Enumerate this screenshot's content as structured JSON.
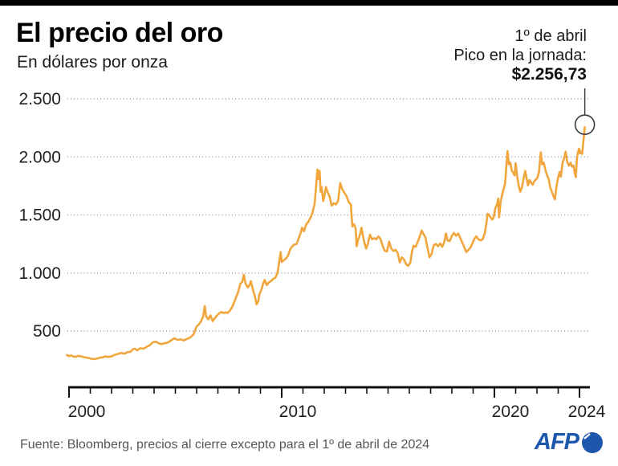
{
  "header": {
    "title": "El precio del oro",
    "subtitle": "En dólares por onza",
    "annotation": {
      "line1": "1º de abril",
      "line2": "Pico en la jornada:",
      "value": "$2.256,73"
    }
  },
  "footer": {
    "source": "Fuente: Bloomberg, precios al cierre excepto para el 1º de abril de 2024",
    "logo_text": "AFP"
  },
  "colors": {
    "line": "#F0A63C",
    "axis": "#111111",
    "grid": "#A6A6A6",
    "tick_label": "#1f1f1f",
    "marker": "#3a3a3a",
    "afp_blue": "#1c57ab",
    "topbar": "#000000"
  },
  "chart_data": {
    "type": "line",
    "title": "El precio del oro",
    "ylabel": "Dólares por onza",
    "xlim": [
      1999.9,
      2024.55
    ],
    "ylim": [
      0,
      2500
    ],
    "grid": "dotted-horizontal",
    "y_ticks": [
      {
        "value": 500,
        "label": "500"
      },
      {
        "value": 1000,
        "label": "1.000"
      },
      {
        "value": 1500,
        "label": "1.500"
      },
      {
        "value": 2000,
        "label": "2.000"
      },
      {
        "value": 2500,
        "label": "2.500"
      }
    ],
    "x_major_ticks": [
      {
        "year": 2000,
        "label": "2000"
      },
      {
        "year": 2010,
        "label": "2010"
      },
      {
        "year": 2020,
        "label": "2020"
      },
      {
        "year": 2024,
        "label": "2024"
      }
    ],
    "x_minor_ticks_every_year": true,
    "peak": {
      "x": 2024.25,
      "value": 2256.73,
      "label": "$2.256,73"
    },
    "series": [
      {
        "name": "Precio del oro",
        "points": [
          [
            1999.9,
            293
          ],
          [
            2000.0,
            283
          ],
          [
            2000.1,
            290
          ],
          [
            2000.2,
            280
          ],
          [
            2000.3,
            278
          ],
          [
            2000.45,
            286
          ],
          [
            2000.6,
            280
          ],
          [
            2000.75,
            273
          ],
          [
            2000.9,
            268
          ],
          [
            2001.0,
            264
          ],
          [
            2001.15,
            258
          ],
          [
            2001.3,
            262
          ],
          [
            2001.45,
            270
          ],
          [
            2001.6,
            274
          ],
          [
            2001.7,
            281
          ],
          [
            2001.85,
            277
          ],
          [
            2002.0,
            281
          ],
          [
            2002.15,
            295
          ],
          [
            2002.3,
            302
          ],
          [
            2002.45,
            312
          ],
          [
            2002.6,
            305
          ],
          [
            2002.75,
            318
          ],
          [
            2002.9,
            322
          ],
          [
            2003.0,
            342
          ],
          [
            2003.1,
            348
          ],
          [
            2003.2,
            334
          ],
          [
            2003.35,
            352
          ],
          [
            2003.5,
            348
          ],
          [
            2003.65,
            363
          ],
          [
            2003.8,
            378
          ],
          [
            2003.95,
            404
          ],
          [
            2004.1,
            408
          ],
          [
            2004.2,
            395
          ],
          [
            2004.35,
            388
          ],
          [
            2004.5,
            395
          ],
          [
            2004.65,
            402
          ],
          [
            2004.8,
            420
          ],
          [
            2004.95,
            438
          ],
          [
            2005.1,
            424
          ],
          [
            2005.25,
            428
          ],
          [
            2005.4,
            420
          ],
          [
            2005.55,
            432
          ],
          [
            2005.7,
            445
          ],
          [
            2005.85,
            470
          ],
          [
            2006.0,
            540
          ],
          [
            2006.1,
            555
          ],
          [
            2006.2,
            582
          ],
          [
            2006.3,
            620
          ],
          [
            2006.38,
            715
          ],
          [
            2006.45,
            625
          ],
          [
            2006.55,
            600
          ],
          [
            2006.65,
            635
          ],
          [
            2006.75,
            585
          ],
          [
            2006.85,
            610
          ],
          [
            2006.95,
            632
          ],
          [
            2007.05,
            650
          ],
          [
            2007.15,
            663
          ],
          [
            2007.25,
            655
          ],
          [
            2007.35,
            662
          ],
          [
            2007.45,
            655
          ],
          [
            2007.55,
            672
          ],
          [
            2007.65,
            700
          ],
          [
            2007.75,
            740
          ],
          [
            2007.85,
            790
          ],
          [
            2007.95,
            835
          ],
          [
            2008.05,
            905
          ],
          [
            2008.15,
            925
          ],
          [
            2008.22,
            985
          ],
          [
            2008.3,
            910
          ],
          [
            2008.4,
            875
          ],
          [
            2008.5,
            900
          ],
          [
            2008.55,
            930
          ],
          [
            2008.65,
            855
          ],
          [
            2008.75,
            790
          ],
          [
            2008.82,
            730
          ],
          [
            2008.9,
            760
          ],
          [
            2008.95,
            815
          ],
          [
            2009.05,
            858
          ],
          [
            2009.12,
            905
          ],
          [
            2009.2,
            940
          ],
          [
            2009.3,
            895
          ],
          [
            2009.4,
            920
          ],
          [
            2009.5,
            930
          ],
          [
            2009.6,
            950
          ],
          [
            2009.7,
            960
          ],
          [
            2009.8,
            1000
          ],
          [
            2009.9,
            1120
          ],
          [
            2009.95,
            1180
          ],
          [
            2010.0,
            1095
          ],
          [
            2010.1,
            1110
          ],
          [
            2010.2,
            1125
          ],
          [
            2010.3,
            1150
          ],
          [
            2010.4,
            1205
          ],
          [
            2010.5,
            1230
          ],
          [
            2010.6,
            1245
          ],
          [
            2010.7,
            1250
          ],
          [
            2010.8,
            1300
          ],
          [
            2010.9,
            1350
          ],
          [
            2010.95,
            1390
          ],
          [
            2011.05,
            1360
          ],
          [
            2011.15,
            1420
          ],
          [
            2011.25,
            1440
          ],
          [
            2011.35,
            1475
          ],
          [
            2011.45,
            1520
          ],
          [
            2011.55,
            1600
          ],
          [
            2011.62,
            1750
          ],
          [
            2011.68,
            1890
          ],
          [
            2011.72,
            1810
          ],
          [
            2011.78,
            1880
          ],
          [
            2011.83,
            1700
          ],
          [
            2011.88,
            1740
          ],
          [
            2011.95,
            1620
          ],
          [
            2012.0,
            1655
          ],
          [
            2012.08,
            1740
          ],
          [
            2012.15,
            1700
          ],
          [
            2012.25,
            1660
          ],
          [
            2012.35,
            1580
          ],
          [
            2012.45,
            1600
          ],
          [
            2012.55,
            1590
          ],
          [
            2012.65,
            1620
          ],
          [
            2012.75,
            1775
          ],
          [
            2012.85,
            1720
          ],
          [
            2012.95,
            1690
          ],
          [
            2013.05,
            1660
          ],
          [
            2013.15,
            1610
          ],
          [
            2013.25,
            1590
          ],
          [
            2013.32,
            1400
          ],
          [
            2013.4,
            1420
          ],
          [
            2013.48,
            1380
          ],
          [
            2013.52,
            1230
          ],
          [
            2013.6,
            1290
          ],
          [
            2013.68,
            1330
          ],
          [
            2013.75,
            1390
          ],
          [
            2013.82,
            1320
          ],
          [
            2013.9,
            1250
          ],
          [
            2013.97,
            1210
          ],
          [
            2014.05,
            1250
          ],
          [
            2014.15,
            1330
          ],
          [
            2014.25,
            1290
          ],
          [
            2014.35,
            1300
          ],
          [
            2014.45,
            1290
          ],
          [
            2014.55,
            1315
          ],
          [
            2014.65,
            1290
          ],
          [
            2014.75,
            1230
          ],
          [
            2014.85,
            1190
          ],
          [
            2014.95,
            1185
          ],
          [
            2015.05,
            1270
          ],
          [
            2015.15,
            1210
          ],
          [
            2015.25,
            1190
          ],
          [
            2015.35,
            1200
          ],
          [
            2015.45,
            1175
          ],
          [
            2015.55,
            1090
          ],
          [
            2015.65,
            1135
          ],
          [
            2015.75,
            1115
          ],
          [
            2015.85,
            1075
          ],
          [
            2015.95,
            1062
          ],
          [
            2016.05,
            1090
          ],
          [
            2016.12,
            1180
          ],
          [
            2016.2,
            1235
          ],
          [
            2016.3,
            1225
          ],
          [
            2016.4,
            1270
          ],
          [
            2016.5,
            1320
          ],
          [
            2016.58,
            1365
          ],
          [
            2016.65,
            1340
          ],
          [
            2016.75,
            1310
          ],
          [
            2016.85,
            1220
          ],
          [
            2016.95,
            1135
          ],
          [
            2017.05,
            1165
          ],
          [
            2017.15,
            1240
          ],
          [
            2017.25,
            1250
          ],
          [
            2017.35,
            1230
          ],
          [
            2017.45,
            1255
          ],
          [
            2017.55,
            1225
          ],
          [
            2017.65,
            1270
          ],
          [
            2017.72,
            1340
          ],
          [
            2017.8,
            1280
          ],
          [
            2017.9,
            1275
          ],
          [
            2018.0,
            1320
          ],
          [
            2018.1,
            1345
          ],
          [
            2018.2,
            1320
          ],
          [
            2018.3,
            1340
          ],
          [
            2018.4,
            1300
          ],
          [
            2018.5,
            1255
          ],
          [
            2018.6,
            1215
          ],
          [
            2018.68,
            1180
          ],
          [
            2018.78,
            1200
          ],
          [
            2018.88,
            1220
          ],
          [
            2018.95,
            1250
          ],
          [
            2019.05,
            1290
          ],
          [
            2019.15,
            1315
          ],
          [
            2019.25,
            1290
          ],
          [
            2019.35,
            1280
          ],
          [
            2019.45,
            1290
          ],
          [
            2019.55,
            1345
          ],
          [
            2019.62,
            1420
          ],
          [
            2019.68,
            1510
          ],
          [
            2019.75,
            1500
          ],
          [
            2019.82,
            1480
          ],
          [
            2019.9,
            1460
          ],
          [
            2019.97,
            1480
          ],
          [
            2020.05,
            1560
          ],
          [
            2020.12,
            1590
          ],
          [
            2020.18,
            1640
          ],
          [
            2020.22,
            1480
          ],
          [
            2020.3,
            1620
          ],
          [
            2020.4,
            1700
          ],
          [
            2020.5,
            1770
          ],
          [
            2020.57,
            1940
          ],
          [
            2020.62,
            2050
          ],
          [
            2020.68,
            1935
          ],
          [
            2020.75,
            1950
          ],
          [
            2020.82,
            1880
          ],
          [
            2020.88,
            1865
          ],
          [
            2020.95,
            1840
          ],
          [
            2021.0,
            1945
          ],
          [
            2021.07,
            1830
          ],
          [
            2021.15,
            1745
          ],
          [
            2021.22,
            1700
          ],
          [
            2021.3,
            1740
          ],
          [
            2021.38,
            1820
          ],
          [
            2021.45,
            1880
          ],
          [
            2021.52,
            1810
          ],
          [
            2021.58,
            1755
          ],
          [
            2021.65,
            1800
          ],
          [
            2021.72,
            1780
          ],
          [
            2021.8,
            1760
          ],
          [
            2021.88,
            1790
          ],
          [
            2021.95,
            1805
          ],
          [
            2022.02,
            1820
          ],
          [
            2022.1,
            1870
          ],
          [
            2022.18,
            2040
          ],
          [
            2022.25,
            1935
          ],
          [
            2022.32,
            1950
          ],
          [
            2022.4,
            1885
          ],
          [
            2022.48,
            1840
          ],
          [
            2022.55,
            1810
          ],
          [
            2022.62,
            1740
          ],
          [
            2022.7,
            1700
          ],
          [
            2022.78,
            1660
          ],
          [
            2022.85,
            1635
          ],
          [
            2022.92,
            1750
          ],
          [
            2023.0,
            1825
          ],
          [
            2023.07,
            1870
          ],
          [
            2023.13,
            1830
          ],
          [
            2023.2,
            1945
          ],
          [
            2023.28,
            1990
          ],
          [
            2023.35,
            2045
          ],
          [
            2023.42,
            1960
          ],
          [
            2023.5,
            1925
          ],
          [
            2023.58,
            1950
          ],
          [
            2023.65,
            1915
          ],
          [
            2023.72,
            1925
          ],
          [
            2023.78,
            1860
          ],
          [
            2023.83,
            1825
          ],
          [
            2023.88,
            1985
          ],
          [
            2023.93,
            2040
          ],
          [
            2023.98,
            2070
          ],
          [
            2024.03,
            2030
          ],
          [
            2024.08,
            2045
          ],
          [
            2024.12,
            2025
          ],
          [
            2024.16,
            2085
          ],
          [
            2024.2,
            2165
          ],
          [
            2024.25,
            2256.73
          ]
        ]
      }
    ]
  }
}
